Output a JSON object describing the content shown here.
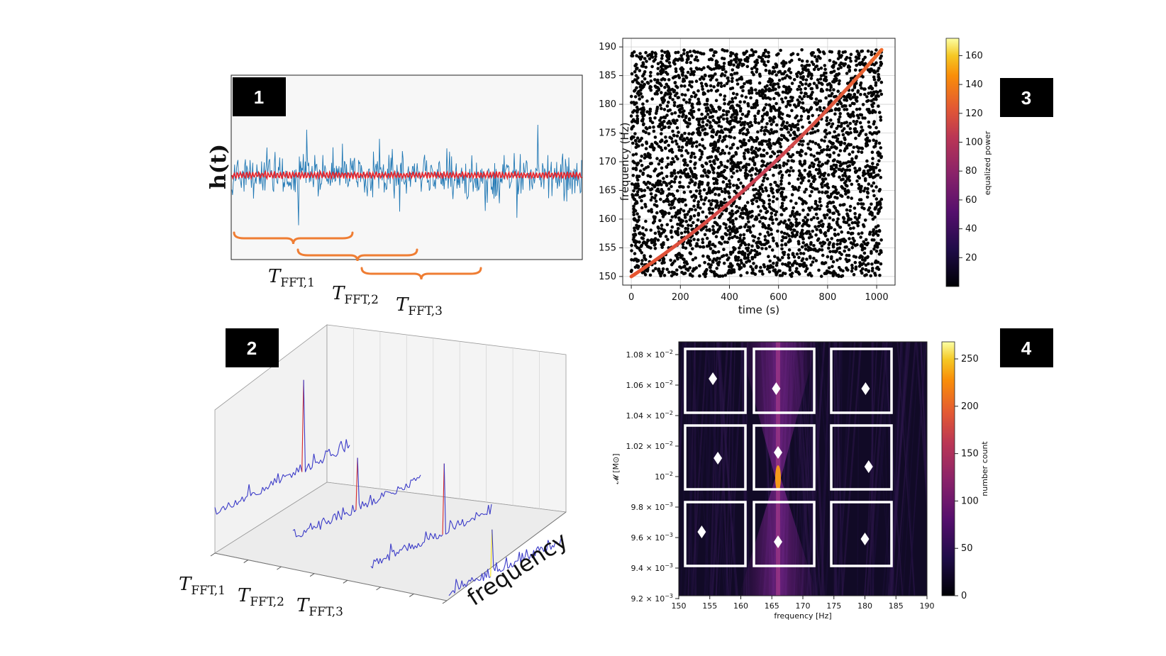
{
  "badges": [
    "1",
    "2",
    "3",
    "4"
  ],
  "panel1": {
    "ylabel": "h(t)",
    "fft_labels": [
      {
        "base": "T",
        "sub": "FFT,1"
      },
      {
        "base": "T",
        "sub": "FFT,2"
      },
      {
        "base": "T",
        "sub": "FFT,3"
      }
    ],
    "colors": {
      "signal": "#1f77b4",
      "injection": "#e8232a",
      "brace": "#ef7d33"
    }
  },
  "panel2": {
    "axis_label": "frequency",
    "fft_labels": [
      {
        "base": "T",
        "sub": "FFT,1"
      },
      {
        "base": "T",
        "sub": "FFT,2"
      },
      {
        "base": "T",
        "sub": "FFT,3"
      }
    ]
  },
  "chart_data": [
    {
      "type": "scatter",
      "id": "time-frequency",
      "xlabel": "time (s)",
      "ylabel": "frequency (Hz)",
      "xlim": [
        -35,
        1075
      ],
      "ylim": [
        148.5,
        191.5
      ],
      "xticks": [
        0,
        200,
        400,
        600,
        800,
        1000
      ],
      "yticks": [
        150,
        155,
        160,
        165,
        170,
        175,
        180,
        185,
        190
      ],
      "track": {
        "t_start": 0,
        "t_end": 1020,
        "f_start": 150,
        "f_end": 189.5
      },
      "colorbar": {
        "label": "equalized power",
        "range": [
          0,
          172
        ],
        "ticks": [
          20,
          40,
          60,
          80,
          100,
          120,
          140,
          160
        ]
      }
    },
    {
      "type": "heatmap",
      "id": "hough-map",
      "xlabel": "frequency [Hz]",
      "ylabel": "𝓜 [M⊙]",
      "xlim": [
        150,
        190
      ],
      "xticks": [
        "150",
        "155",
        "160",
        "165",
        "170",
        "175",
        "180",
        "185",
        "190"
      ],
      "ytick_labels": [
        {
          "mant": "1.08",
          "exp": "−2"
        },
        {
          "mant": "1.06",
          "exp": "−2"
        },
        {
          "mant": "1.04",
          "exp": "−2"
        },
        {
          "mant": "1.02",
          "exp": "−2"
        },
        {
          "mant": "",
          "exp": "−2"
        },
        {
          "mant": "9.8",
          "exp": "−3"
        },
        {
          "mant": "9.6",
          "exp": "−3"
        },
        {
          "mant": "9.4",
          "exp": "−3"
        },
        {
          "mant": "9.2",
          "exp": "−3"
        }
      ],
      "colorbar": {
        "label": "number count",
        "range": [
          0,
          268
        ],
        "ticks": [
          0,
          50,
          100,
          150,
          200,
          250
        ]
      },
      "peak_frequency": 166,
      "markers": [
        {
          "f": 155.5,
          "row": 0
        },
        {
          "f": 165.7,
          "row": 0
        },
        {
          "f": 180.1,
          "row": 0
        },
        {
          "f": 156.3,
          "row": 1
        },
        {
          "f": 166.0,
          "row": 1
        },
        {
          "f": 180.6,
          "row": 1
        },
        {
          "f": 153.7,
          "row": 2
        },
        {
          "f": 166.0,
          "row": 2
        },
        {
          "f": 180.0,
          "row": 2
        }
      ]
    }
  ]
}
